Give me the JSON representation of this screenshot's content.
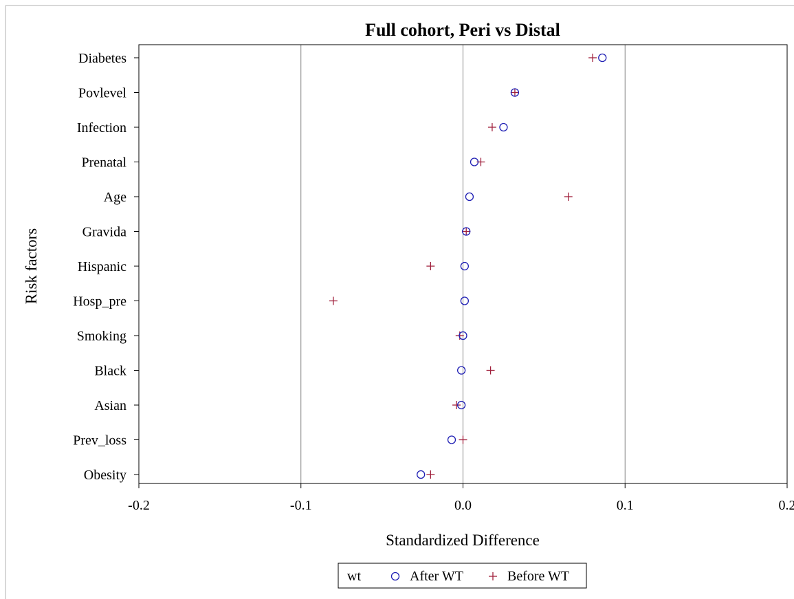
{
  "colors": {
    "after": "#1f1fb4",
    "before": "#a0203c",
    "refline": "#808080",
    "axis": "#000000"
  },
  "chart_data": {
    "type": "scatter",
    "title": "Full cohort, Peri vs Distal",
    "xlabel": "Standardized Difference",
    "ylabel": "Risk factors",
    "xlim": [
      -0.2,
      0.2
    ],
    "x_ticks": [
      "-0.2",
      "-0.1",
      "0.0",
      "0.1",
      "0.2"
    ],
    "reference_lines_x": [
      -0.1,
      0.0,
      0.1
    ],
    "grid": false,
    "categories": [
      "Diabetes",
      "Povlevel",
      "Infection",
      "Prenatal",
      "Age",
      "Gravida",
      "Hispanic",
      "Hosp_pre",
      "Smoking",
      "Black",
      "Asian",
      "Prev_loss",
      "Obesity"
    ],
    "series": [
      {
        "name": "After WT",
        "marker": "circle",
        "values": [
          0.086,
          0.032,
          0.025,
          0.007,
          0.004,
          0.002,
          0.001,
          0.001,
          0.0,
          -0.001,
          -0.001,
          -0.007,
          -0.026
        ]
      },
      {
        "name": "Before WT",
        "marker": "plus",
        "values": [
          0.08,
          0.032,
          0.018,
          0.011,
          0.065,
          0.002,
          -0.02,
          -0.08,
          -0.002,
          0.017,
          -0.004,
          0.0,
          -0.02
        ]
      }
    ],
    "legend": {
      "title": "wt",
      "position": "bottom"
    }
  }
}
